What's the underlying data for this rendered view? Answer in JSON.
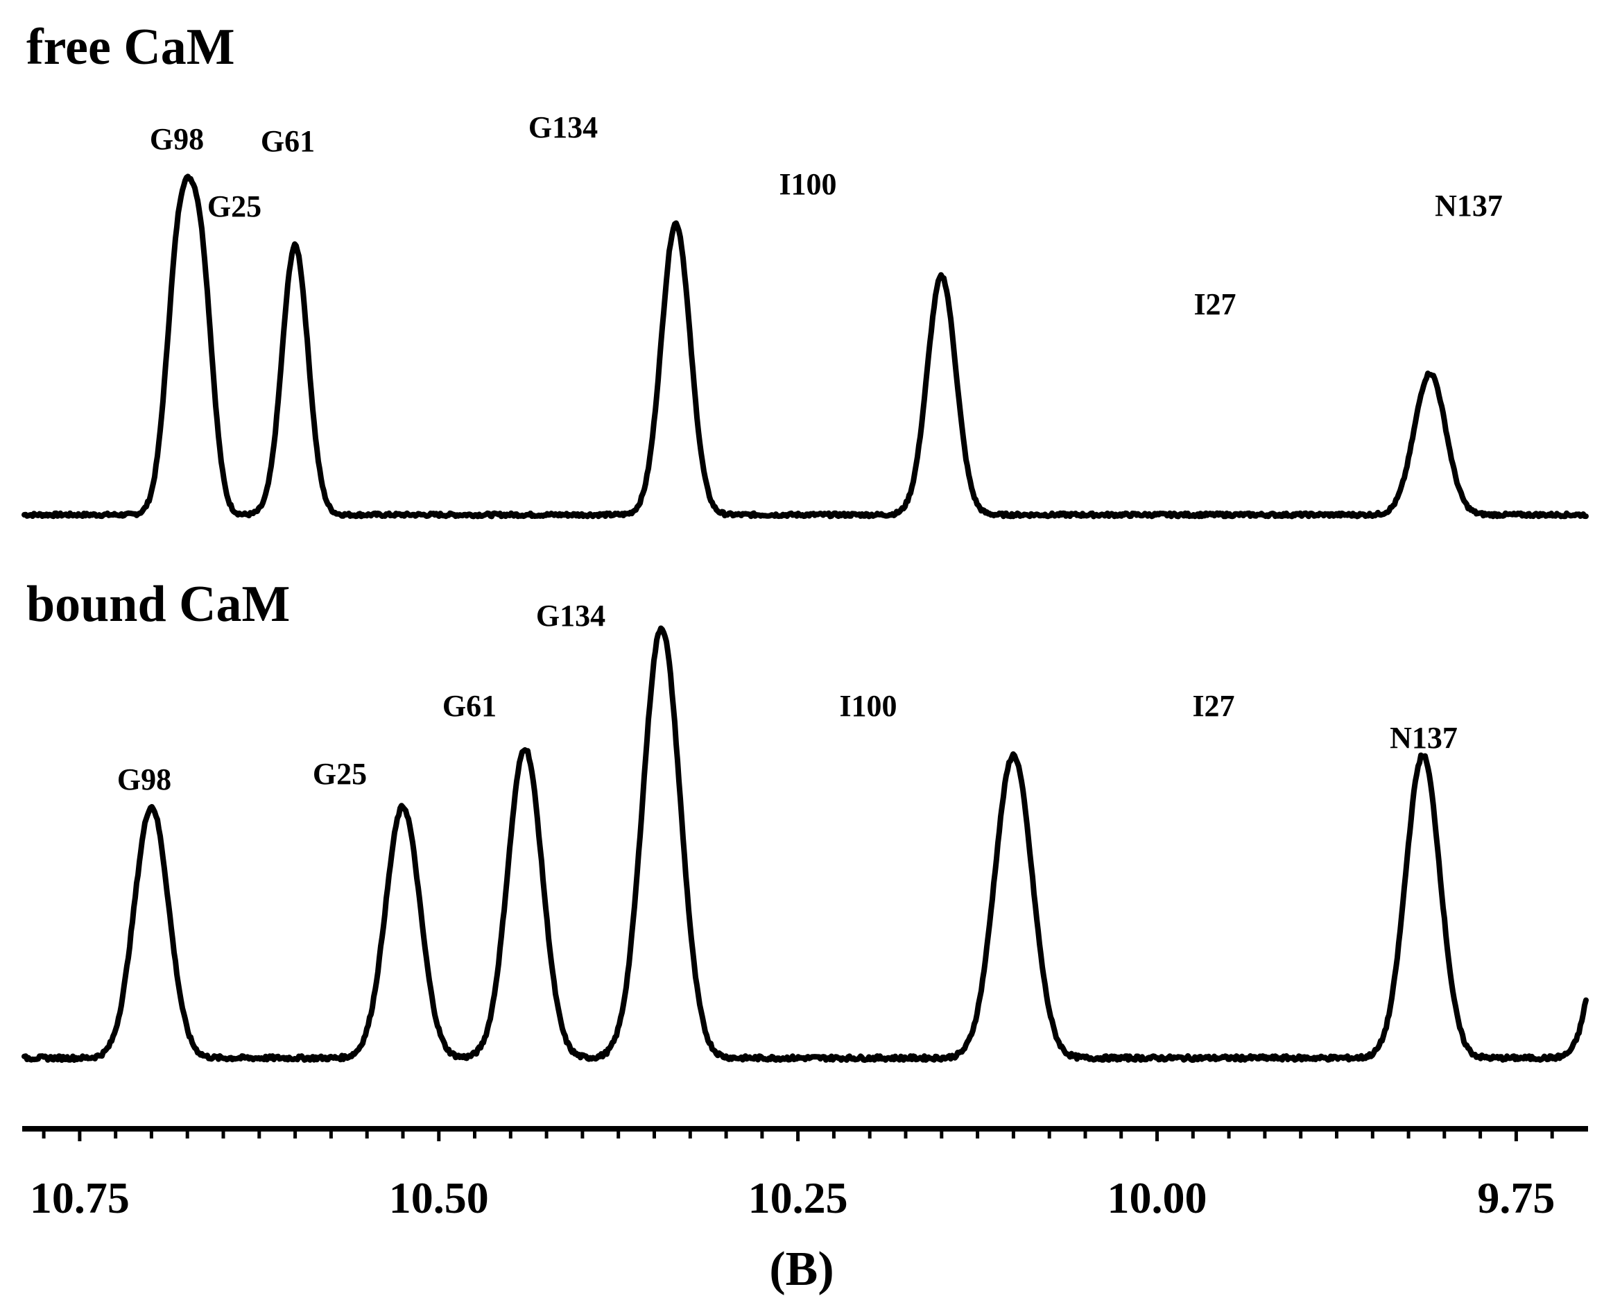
{
  "chart_data": {
    "type": "line",
    "caption": "(B)",
    "xlabel": "",
    "ylabel": "",
    "x_axis": {
      "reversed": true,
      "xlim": [
        10.79,
        9.7
      ],
      "major_ticks": [
        10.75,
        10.5,
        10.25,
        10.0,
        9.75
      ],
      "tick_labels": [
        "10.75",
        "10.50",
        "10.25",
        "10.00",
        "9.75"
      ],
      "minor_tick_step": 0.025
    },
    "grid": false,
    "panels": [
      {
        "title": "free CaM",
        "baseline": 0.02,
        "peaks": [
          {
            "label": "G98",
            "x": 10.68,
            "height": 1.0,
            "width": 0.009
          },
          {
            "label": "G25",
            "x": 10.665,
            "height": 0.78,
            "width": 0.008
          },
          {
            "label": "G61",
            "x": 10.6,
            "height": 0.97,
            "width": 0.009
          },
          {
            "label": "G134",
            "x": 10.335,
            "height": 1.05,
            "width": 0.01
          },
          {
            "label": "I100",
            "x": 10.15,
            "height": 0.86,
            "width": 0.01
          },
          {
            "label": "I27",
            "x": 9.81,
            "height": 0.51,
            "width": 0.011
          },
          {
            "label": "N137",
            "x": 9.64,
            "height": 0.8,
            "width": 0.01
          }
        ]
      },
      {
        "title": "bound CaM",
        "baseline": 0.02,
        "peaks": [
          {
            "label": "G98",
            "x": 10.7,
            "height": 0.73,
            "width": 0.012
          },
          {
            "label": "G25",
            "x": 10.525,
            "height": 0.73,
            "width": 0.012
          },
          {
            "label": "G61",
            "x": 10.44,
            "height": 0.9,
            "width": 0.012
          },
          {
            "label": "G134",
            "x": 10.345,
            "height": 1.25,
            "width": 0.013
          },
          {
            "label": "I100",
            "x": 10.1,
            "height": 0.88,
            "width": 0.013
          },
          {
            "label": "I27",
            "x": 9.815,
            "height": 0.88,
            "width": 0.012
          },
          {
            "label": "N137",
            "x": 9.68,
            "height": 0.85,
            "width": 0.012
          }
        ]
      }
    ]
  }
}
